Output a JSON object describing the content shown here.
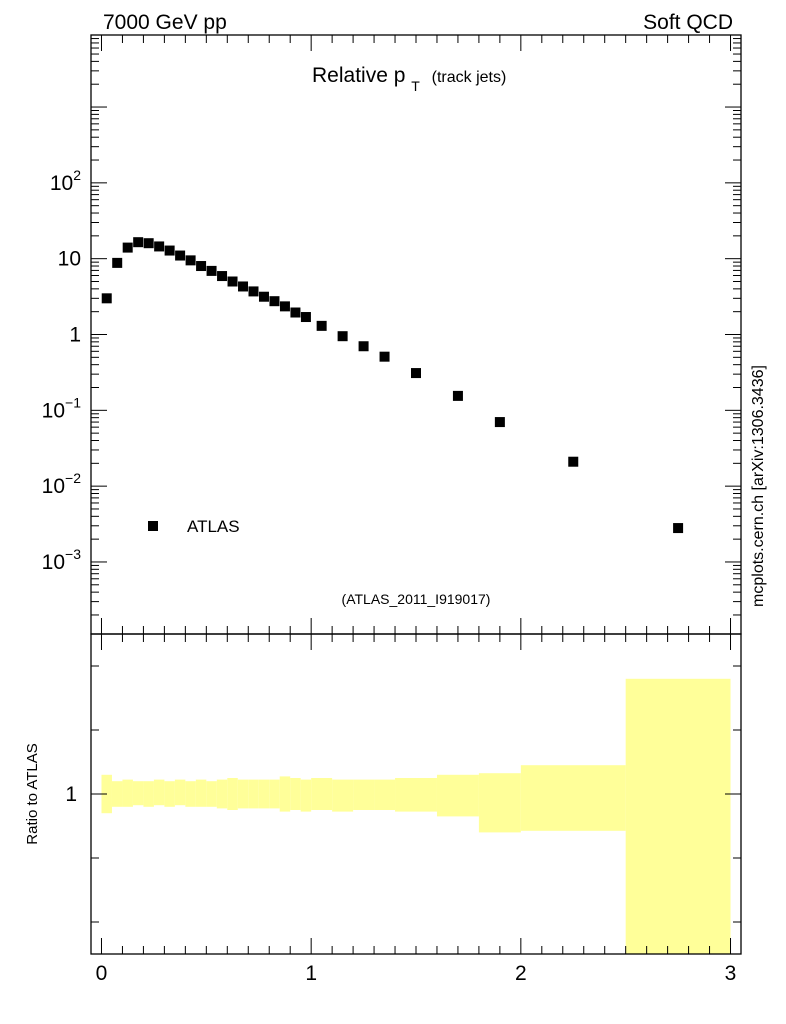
{
  "header": {
    "left": "7000 GeV pp",
    "right": "Soft QCD"
  },
  "side_label": "mcplots.cern.ch [arXiv:1306.3436]",
  "chart_data": {
    "type": "scatter",
    "title_main": "Relative p",
    "title_sub": "T",
    "title_suffix": "(track jets)",
    "analysis_id": "(ATLAS_2011_I919017)",
    "legend": [
      {
        "name": "ATLAS",
        "marker": "square",
        "color": "#000000",
        "placement": "lower-left"
      }
    ],
    "main_panel": {
      "yscale": "log",
      "xlim": [
        -0.05,
        3.05
      ],
      "ylim_log10": [
        -3.95,
        3.95
      ],
      "y_ticks": [
        {
          "value": 0.001,
          "base": "10",
          "exp": "−3",
          "text": ""
        },
        {
          "value": 0.01,
          "base": "10",
          "exp": "−2",
          "text": ""
        },
        {
          "value": 0.1,
          "base": "10",
          "exp": "−1",
          "text": ""
        },
        {
          "value": 1,
          "base": "",
          "exp": "",
          "text": "1"
        },
        {
          "value": 10,
          "base": "",
          "exp": "",
          "text": "10"
        },
        {
          "value": 100,
          "base": "10",
          "exp": "2",
          "text": ""
        }
      ],
      "series": [
        {
          "name": "ATLAS",
          "color": "#000000",
          "points": [
            [
              0.025,
              3.0
            ],
            [
              0.075,
              8.8
            ],
            [
              0.125,
              14.0
            ],
            [
              0.175,
              16.5
            ],
            [
              0.225,
              16.0
            ],
            [
              0.275,
              14.5
            ],
            [
              0.325,
              12.8
            ],
            [
              0.375,
              11.0
            ],
            [
              0.425,
              9.5
            ],
            [
              0.475,
              8.0
            ],
            [
              0.525,
              6.9
            ],
            [
              0.575,
              5.9
            ],
            [
              0.625,
              5.0
            ],
            [
              0.675,
              4.3
            ],
            [
              0.725,
              3.7
            ],
            [
              0.775,
              3.15
            ],
            [
              0.825,
              2.75
            ],
            [
              0.875,
              2.35
            ],
            [
              0.925,
              1.95
            ],
            [
              0.975,
              1.7
            ],
            [
              1.05,
              1.3
            ],
            [
              1.15,
              0.95
            ],
            [
              1.25,
              0.7
            ],
            [
              1.35,
              0.51
            ],
            [
              1.5,
              0.31
            ],
            [
              1.7,
              0.155
            ],
            [
              1.9,
              0.07
            ],
            [
              2.25,
              0.021
            ],
            [
              2.75,
              0.0028
            ]
          ]
        }
      ]
    },
    "ratio_panel": {
      "ylabel": "Ratio to ATLAS",
      "y_ticks": [
        {
          "value": 1,
          "text": "1"
        }
      ],
      "ylim": [
        0.5,
        1.5
      ],
      "band_color": "#ffff99",
      "bins": [
        [
          0.0,
          0.05,
          0.94,
          1.06
        ],
        [
          0.05,
          0.1,
          0.96,
          1.04
        ],
        [
          0.1,
          0.15,
          0.96,
          1.045
        ],
        [
          0.15,
          0.2,
          0.965,
          1.04
        ],
        [
          0.2,
          0.25,
          0.96,
          1.04
        ],
        [
          0.25,
          0.3,
          0.965,
          1.045
        ],
        [
          0.3,
          0.35,
          0.96,
          1.04
        ],
        [
          0.35,
          0.4,
          0.965,
          1.045
        ],
        [
          0.4,
          0.45,
          0.96,
          1.04
        ],
        [
          0.45,
          0.5,
          0.96,
          1.045
        ],
        [
          0.5,
          0.55,
          0.96,
          1.04
        ],
        [
          0.55,
          0.6,
          0.955,
          1.045
        ],
        [
          0.6,
          0.65,
          0.95,
          1.05
        ],
        [
          0.65,
          0.7,
          0.955,
          1.045
        ],
        [
          0.7,
          0.75,
          0.955,
          1.045
        ],
        [
          0.75,
          0.8,
          0.955,
          1.045
        ],
        [
          0.8,
          0.85,
          0.955,
          1.045
        ],
        [
          0.85,
          0.9,
          0.945,
          1.055
        ],
        [
          0.9,
          0.95,
          0.95,
          1.05
        ],
        [
          0.95,
          1.0,
          0.945,
          1.045
        ],
        [
          1.0,
          1.1,
          0.95,
          1.05
        ],
        [
          1.1,
          1.2,
          0.945,
          1.045
        ],
        [
          1.2,
          1.3,
          0.95,
          1.045
        ],
        [
          1.3,
          1.4,
          0.95,
          1.045
        ],
        [
          1.4,
          1.6,
          0.945,
          1.05
        ],
        [
          1.6,
          1.8,
          0.93,
          1.06
        ],
        [
          1.8,
          2.0,
          0.88,
          1.065
        ],
        [
          2.0,
          2.5,
          0.885,
          1.09
        ],
        [
          2.5,
          3.0,
          0.5,
          1.36
        ]
      ]
    },
    "x_ticks": [
      {
        "value": 0,
        "text": "0"
      },
      {
        "value": 1,
        "text": "1"
      },
      {
        "value": 2,
        "text": "2"
      },
      {
        "value": 3,
        "text": "3"
      }
    ]
  }
}
